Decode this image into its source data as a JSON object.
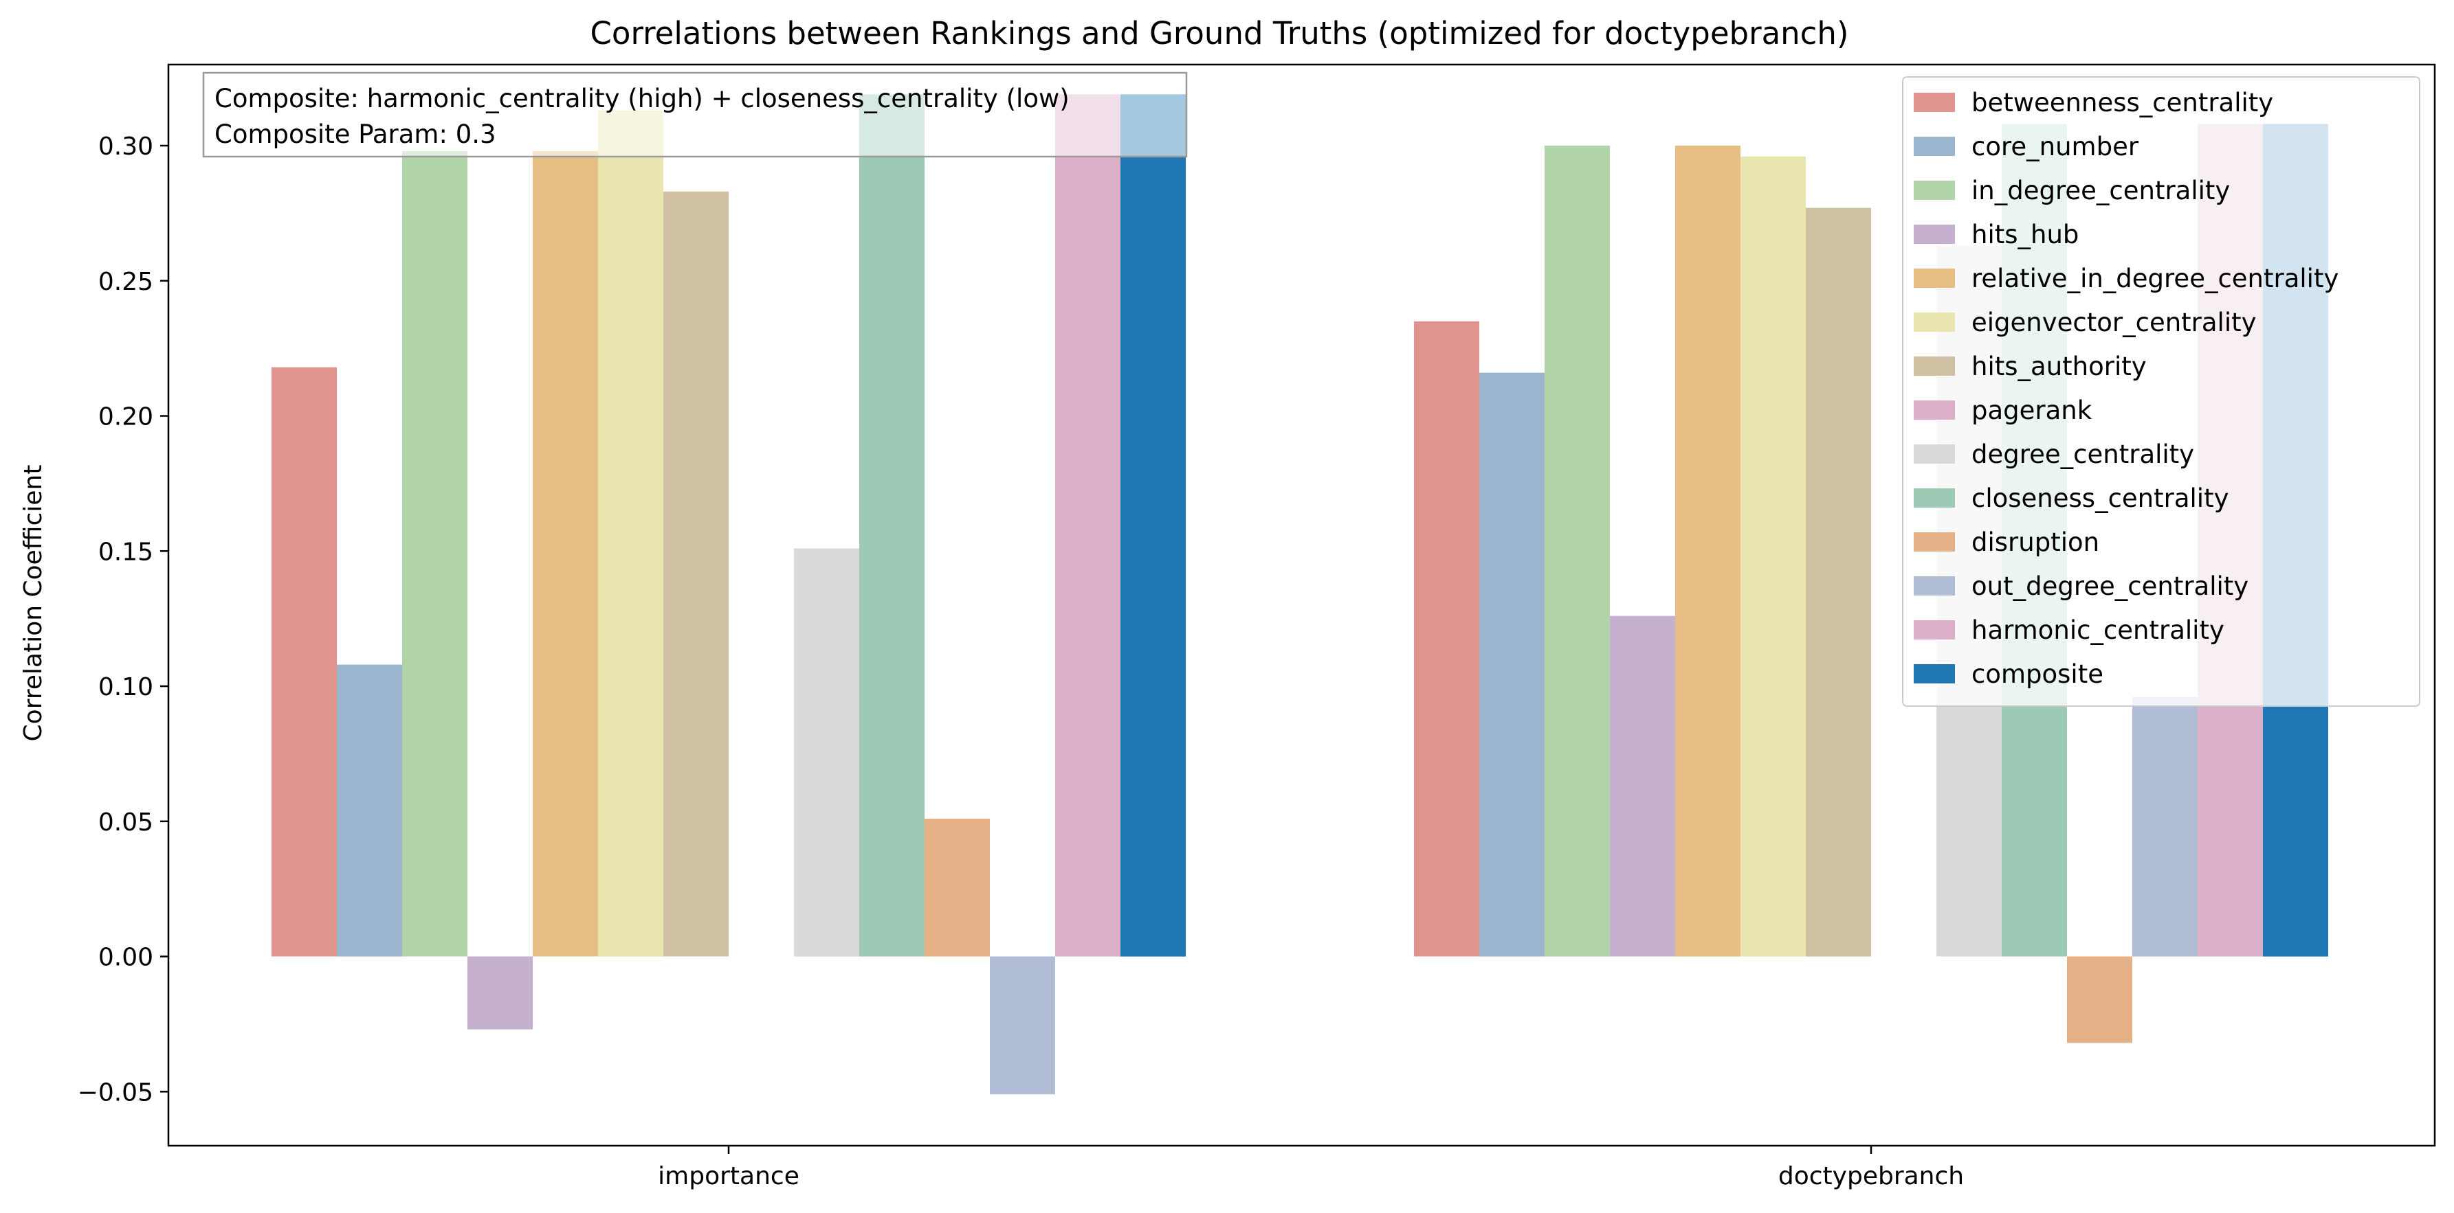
{
  "chart_data": {
    "type": "bar",
    "title": "Correlations between Rankings and Ground Truths (optimized for doctypebranch)",
    "xlabel": "",
    "ylabel": "Correlation Coefficient",
    "categories": [
      "importance",
      "doctypebranch"
    ],
    "ylim": [
      -0.07,
      0.33
    ],
    "yticks": [
      -0.05,
      0.0,
      0.05,
      0.1,
      0.15,
      0.2,
      0.25,
      0.3
    ],
    "ytick_labels": [
      "−0.05",
      "0.00",
      "0.05",
      "0.10",
      "0.15",
      "0.20",
      "0.25",
      "0.30"
    ],
    "grid": false,
    "legend_position": "top-right",
    "series": [
      {
        "name": "betweenness_centrality",
        "color": "#e1938e",
        "values": [
          0.218,
          0.235
        ]
      },
      {
        "name": "core_number",
        "color": "#9ab5cd",
        "values": [
          0.108,
          0.216
        ]
      },
      {
        "name": "in_degree_centrality",
        "color": "#b1d4a9",
        "values": [
          0.298,
          0.3
        ]
      },
      {
        "name": "hits_hub",
        "color": "#c6b0d0",
        "values": [
          -0.027,
          0.126
        ]
      },
      {
        "name": "relative_in_degree_centrality",
        "color": "#e6be84",
        "values": [
          0.298,
          0.3
        ]
      },
      {
        "name": "eigenvector_centrality",
        "color": "#e8e6ae",
        "values": [
          0.313,
          0.296
        ]
      },
      {
        "name": "hits_authority",
        "color": "#cfc0a2",
        "values": [
          0.283,
          0.277
        ]
      },
      {
        "name": "pagerank",
        "color": "#ddb0ca",
        "values": [
          0.0,
          0.0
        ]
      },
      {
        "name": "degree_centrality",
        "color": "#d9d9d9",
        "values": [
          0.151,
          0.263
        ]
      },
      {
        "name": "closeness_centrality",
        "color": "#9ccab5",
        "values": [
          0.319,
          0.308
        ]
      },
      {
        "name": "disruption",
        "color": "#e6b086",
        "values": [
          0.051,
          -0.032
        ]
      },
      {
        "name": "out_degree_centrality",
        "color": "#b0bcd3",
        "values": [
          -0.051,
          0.096
        ]
      },
      {
        "name": "harmonic_centrality",
        "color": "#ddb0ca",
        "values": [
          0.319,
          0.308
        ]
      },
      {
        "name": "composite",
        "color": "#1f77b4",
        "values": [
          0.319,
          0.308
        ]
      }
    ],
    "annotation": {
      "lines": [
        "Composite: harmonic_centrality (high) + closeness_centrality (low)",
        "Composite Param: 0.3"
      ]
    }
  }
}
